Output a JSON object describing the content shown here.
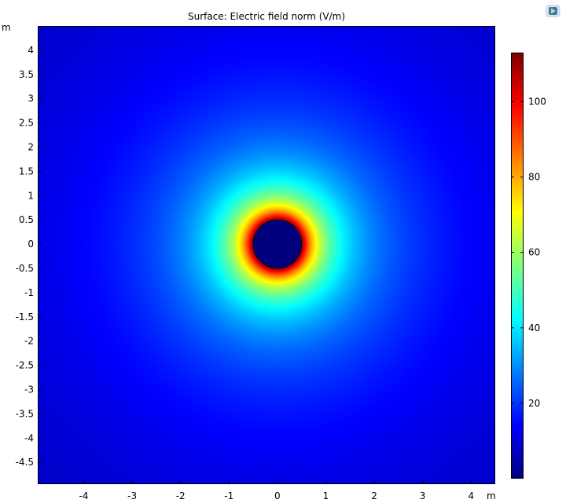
{
  "app": {
    "logo_icon": "comsol-logo-icon"
  },
  "chart_data": {
    "type": "heatmap",
    "title": "Surface: Electric field norm (V/m)",
    "x_unit": "m",
    "y_unit": "m",
    "xlim": [
      -4.95,
      4.5
    ],
    "ylim": [
      -4.95,
      4.5
    ],
    "x_ticks": [
      {
        "value": -4,
        "label": "-4"
      },
      {
        "value": -3,
        "label": "-3"
      },
      {
        "value": -2,
        "label": "-2"
      },
      {
        "value": -1,
        "label": "-1"
      },
      {
        "value": 0,
        "label": "0"
      },
      {
        "value": 1,
        "label": "1"
      },
      {
        "value": 2,
        "label": "2"
      },
      {
        "value": 3,
        "label": "3"
      },
      {
        "value": 4,
        "label": "4"
      }
    ],
    "y_ticks": [
      {
        "value": 4,
        "label": "4"
      },
      {
        "value": 3.5,
        "label": "3.5"
      },
      {
        "value": 3,
        "label": "3"
      },
      {
        "value": 2.5,
        "label": "2.5"
      },
      {
        "value": 2,
        "label": "2"
      },
      {
        "value": 1.5,
        "label": "1.5"
      },
      {
        "value": 1,
        "label": "1"
      },
      {
        "value": 0.5,
        "label": "0.5"
      },
      {
        "value": 0,
        "label": "0"
      },
      {
        "value": -0.5,
        "label": "-0.5"
      },
      {
        "value": -1,
        "label": "-1"
      },
      {
        "value": -1.5,
        "label": "-1.5"
      },
      {
        "value": -2,
        "label": "-2"
      },
      {
        "value": -2.5,
        "label": "-2.5"
      },
      {
        "value": -3,
        "label": "-3"
      },
      {
        "value": -3.5,
        "label": "-3.5"
      },
      {
        "value": -4,
        "label": "-4"
      },
      {
        "value": -4.5,
        "label": "-4.5"
      }
    ],
    "field": {
      "center": [
        0,
        0
      ],
      "conductor_radius": 0.5,
      "peak_value": 113,
      "decay": "inverse-radius",
      "inside_value": 0
    },
    "colorbar": {
      "colormap": "rainbow",
      "min": 0,
      "max": 113,
      "ticks": [
        {
          "value": 20,
          "label": "20"
        },
        {
          "value": 40,
          "label": "40"
        },
        {
          "value": 60,
          "label": "60"
        },
        {
          "value": 80,
          "label": "80"
        },
        {
          "value": 100,
          "label": "100"
        }
      ],
      "colors": [
        "#00007f",
        "#0000ff",
        "#007fff",
        "#00ffff",
        "#7fff7f",
        "#ffff00",
        "#ff7f00",
        "#ff0000",
        "#7f0000"
      ]
    }
  }
}
